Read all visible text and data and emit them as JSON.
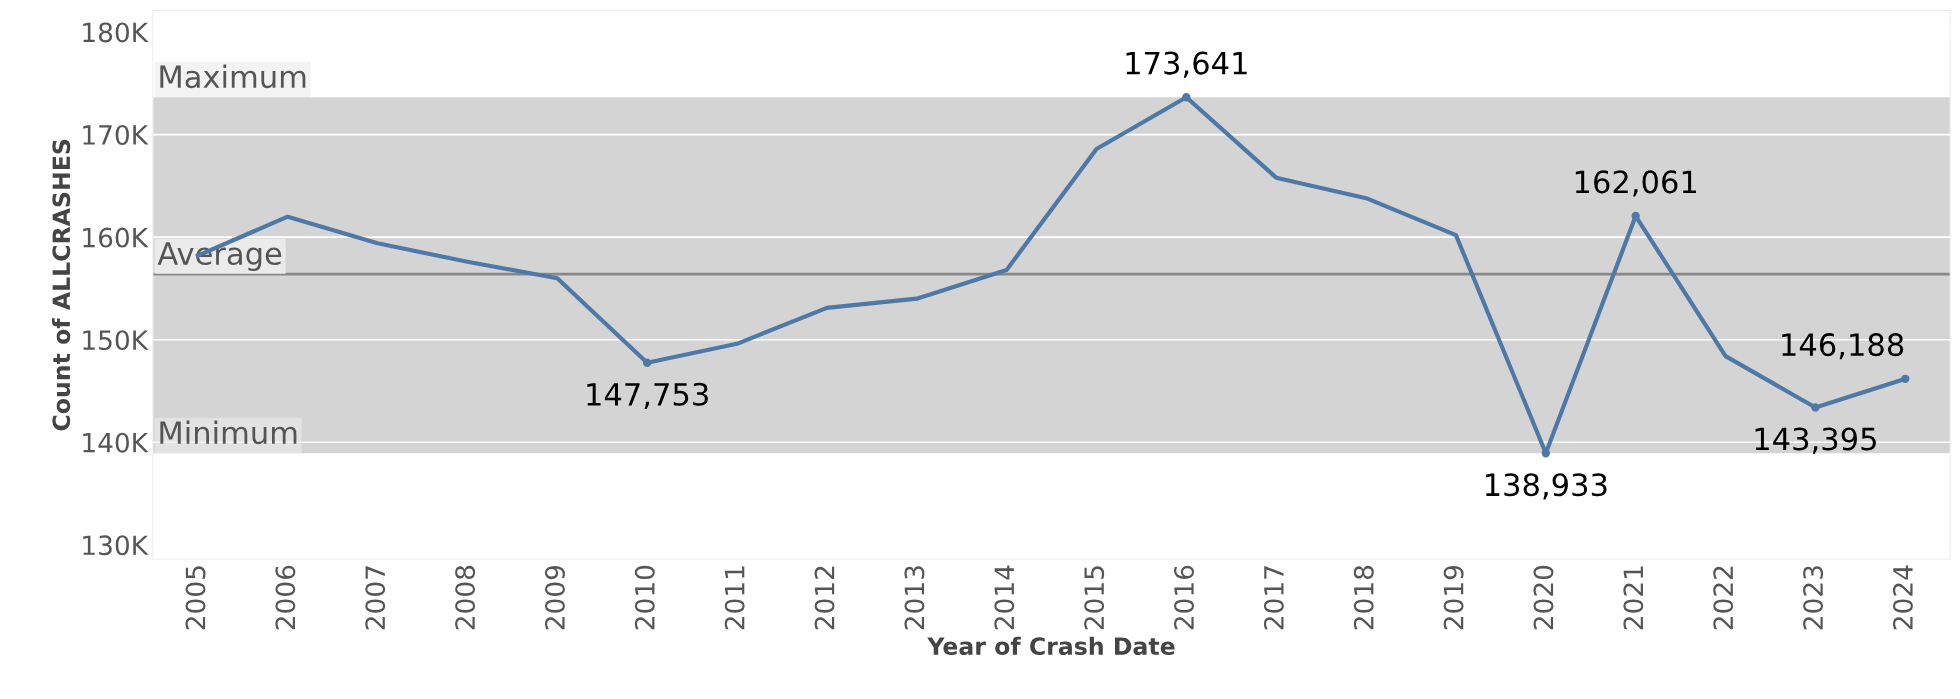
{
  "chart_data": {
    "type": "line",
    "xlabel": "Year of Crash Date",
    "ylabel": "Count of ALLCRASHES",
    "categories": [
      "2005",
      "2006",
      "2007",
      "2008",
      "2009",
      "2010",
      "2011",
      "2012",
      "2013",
      "2014",
      "2015",
      "2016",
      "2017",
      "2018",
      "2019",
      "2020",
      "2021",
      "2022",
      "2023",
      "2024"
    ],
    "series": [
      {
        "color": "#4e79a7",
        "values": [
          158200,
          162000,
          159400,
          157600,
          156000,
          147753,
          149600,
          153100,
          154000,
          156800,
          168600,
          173641,
          165800,
          163800,
          160200,
          138933,
          162061,
          148400,
          143395,
          146188
        ],
        "value_labels": [
          null,
          null,
          null,
          null,
          null,
          "147,753",
          null,
          null,
          null,
          null,
          null,
          "173,641",
          null,
          null,
          null,
          "138,933",
          "162,061",
          null,
          "143,395",
          "146,188"
        ]
      }
    ],
    "ylim": [
      128600,
      182100
    ],
    "yticks": [
      {
        "value": 130000,
        "label": "130K"
      },
      {
        "value": 140000,
        "label": "140K"
      },
      {
        "value": 150000,
        "label": "150K"
      },
      {
        "value": 160000,
        "label": "160K"
      },
      {
        "value": 170000,
        "label": "170K"
      },
      {
        "value": 180000,
        "label": "180K"
      }
    ],
    "grid": "y",
    "bands": [
      {
        "axis": "y",
        "from": 138933,
        "to": 173641,
        "color": "#d4d4d4"
      }
    ],
    "ref_lines": [
      {
        "axis": "y",
        "value": 156400,
        "label": "Average",
        "color": "#888888"
      }
    ],
    "annotations": [
      {
        "text": "Maximum",
        "y": 173641
      },
      {
        "text": "Minimum",
        "y": 138933
      }
    ]
  }
}
